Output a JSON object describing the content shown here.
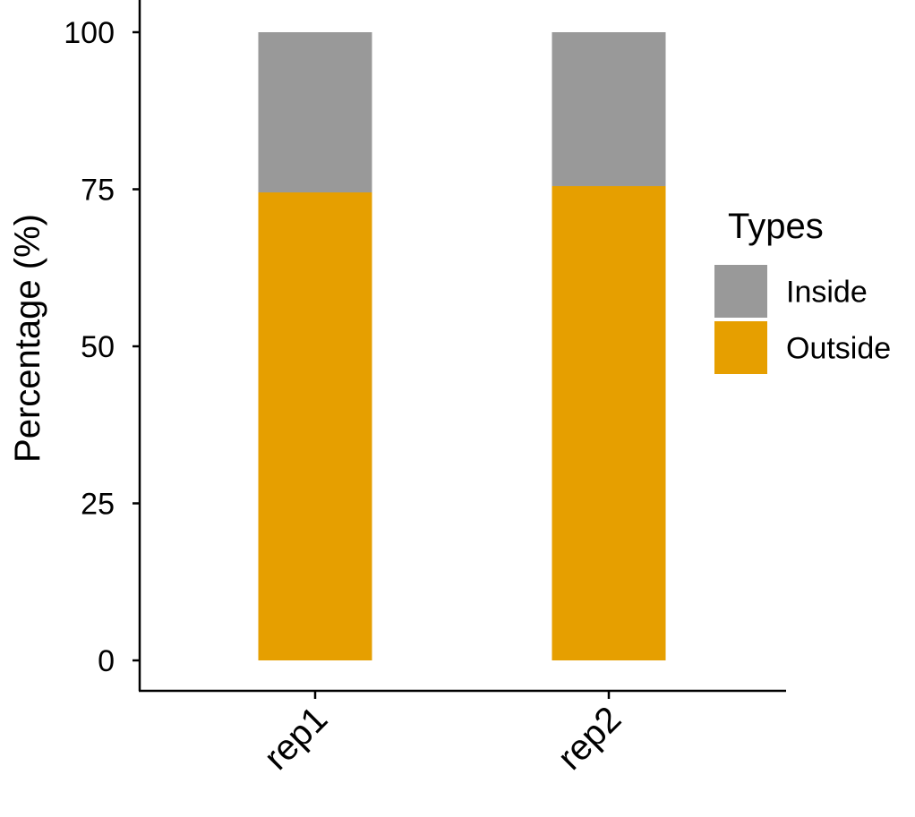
{
  "chart_data": {
    "type": "bar",
    "stacked": true,
    "categories": [
      "rep1",
      "rep2"
    ],
    "series": [
      {
        "name": "Outside",
        "values": [
          74.5,
          75.5
        ],
        "color": "#E69F00"
      },
      {
        "name": "Inside",
        "values": [
          25.5,
          24.5
        ],
        "color": "#999999"
      }
    ],
    "ylabel": "Percentage (%)",
    "xlabel": "",
    "ylim": [
      0,
      100
    ],
    "yticks": [
      0,
      25,
      50,
      75,
      100
    ],
    "grid": false,
    "legend": {
      "title": "Types",
      "position": "right",
      "entries": [
        {
          "label": "Inside",
          "color": "#999999"
        },
        {
          "label": "Outside",
          "color": "#E69F00"
        }
      ]
    }
  }
}
